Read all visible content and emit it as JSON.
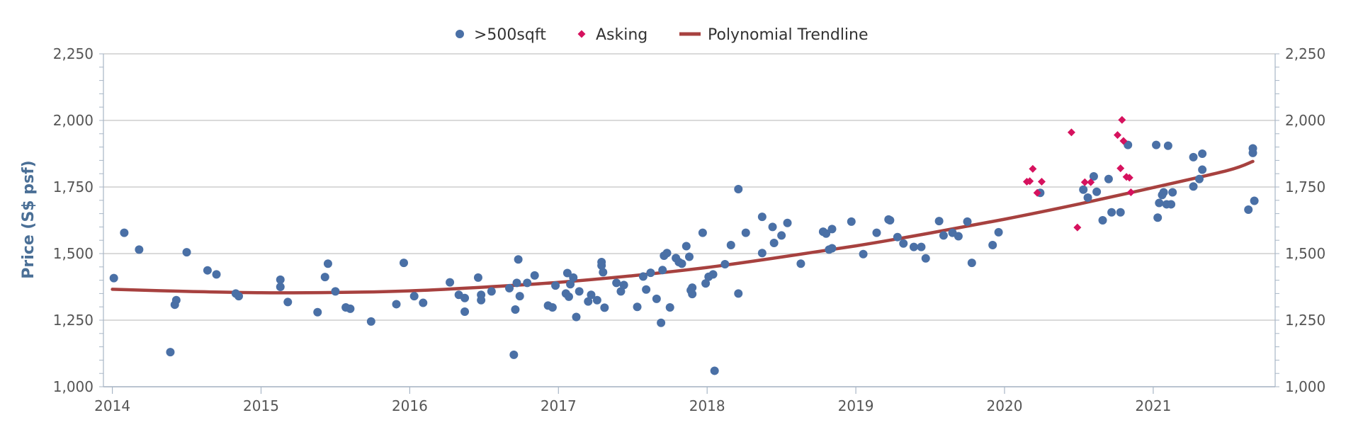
{
  "chart_data": {
    "type": "scatter",
    "ylabel": "Price (S$ psf)",
    "xlabel": "",
    "ylim": [
      1000,
      2250
    ],
    "xlim": [
      2013.94,
      2021.82
    ],
    "y_ticks": [
      1000,
      1250,
      1500,
      1750,
      2000,
      2250
    ],
    "y_tick_labels": [
      "1,000",
      "1,250",
      "1,500",
      "1,750",
      "2,000",
      "2,250"
    ],
    "x_ticks": [
      2014,
      2015,
      2016,
      2017,
      2018,
      2019,
      2020,
      2021
    ],
    "x_tick_labels": [
      "2014",
      "2015",
      "2016",
      "2017",
      "2018",
      "2019",
      "2020",
      "2021"
    ],
    "grid": true,
    "legend_position": "top-center",
    "series": [
      {
        "name": ">500sqft",
        "kind": "scatter",
        "marker": "circle",
        "color": "#4a70a6",
        "points": [
          [
            2014.01,
            1408
          ],
          [
            2014.08,
            1578
          ],
          [
            2014.18,
            1515
          ],
          [
            2014.39,
            1130
          ],
          [
            2014.42,
            1308
          ],
          [
            2014.43,
            1325
          ],
          [
            2014.5,
            1505
          ],
          [
            2014.64,
            1437
          ],
          [
            2014.7,
            1422
          ],
          [
            2014.83,
            1350
          ],
          [
            2014.85,
            1340
          ],
          [
            2015.13,
            1402
          ],
          [
            2015.13,
            1375
          ],
          [
            2015.18,
            1318
          ],
          [
            2015.38,
            1280
          ],
          [
            2015.43,
            1412
          ],
          [
            2015.45,
            1462
          ],
          [
            2015.5,
            1358
          ],
          [
            2015.57,
            1298
          ],
          [
            2015.6,
            1293
          ],
          [
            2015.74,
            1245
          ],
          [
            2015.91,
            1310
          ],
          [
            2015.96,
            1465
          ],
          [
            2016.03,
            1340
          ],
          [
            2016.09,
            1315
          ],
          [
            2016.27,
            1392
          ],
          [
            2016.33,
            1345
          ],
          [
            2016.37,
            1333
          ],
          [
            2016.37,
            1282
          ],
          [
            2016.46,
            1410
          ],
          [
            2016.48,
            1345
          ],
          [
            2016.48,
            1325
          ],
          [
            2016.55,
            1358
          ],
          [
            2016.67,
            1370
          ],
          [
            2016.7,
            1120
          ],
          [
            2016.71,
            1290
          ],
          [
            2016.72,
            1390
          ],
          [
            2016.73,
            1478
          ],
          [
            2016.74,
            1340
          ],
          [
            2016.79,
            1390
          ],
          [
            2016.84,
            1418
          ],
          [
            2016.93,
            1305
          ],
          [
            2016.96,
            1298
          ],
          [
            2016.98,
            1380
          ],
          [
            2017.05,
            1350
          ],
          [
            2017.06,
            1427
          ],
          [
            2017.07,
            1338
          ],
          [
            2017.08,
            1385
          ],
          [
            2017.1,
            1410
          ],
          [
            2017.12,
            1262
          ],
          [
            2017.14,
            1358
          ],
          [
            2017.2,
            1320
          ],
          [
            2017.22,
            1345
          ],
          [
            2017.26,
            1325
          ],
          [
            2017.29,
            1468
          ],
          [
            2017.29,
            1455
          ],
          [
            2017.3,
            1430
          ],
          [
            2017.31,
            1297
          ],
          [
            2017.39,
            1390
          ],
          [
            2017.42,
            1358
          ],
          [
            2017.44,
            1382
          ],
          [
            2017.53,
            1300
          ],
          [
            2017.57,
            1414
          ],
          [
            2017.59,
            1365
          ],
          [
            2017.62,
            1428
          ],
          [
            2017.66,
            1330
          ],
          [
            2017.69,
            1240
          ],
          [
            2017.7,
            1438
          ],
          [
            2017.71,
            1492
          ],
          [
            2017.73,
            1502
          ],
          [
            2017.75,
            1298
          ],
          [
            2017.79,
            1483
          ],
          [
            2017.81,
            1468
          ],
          [
            2017.83,
            1462
          ],
          [
            2017.86,
            1528
          ],
          [
            2017.88,
            1488
          ],
          [
            2017.89,
            1362
          ],
          [
            2017.9,
            1348
          ],
          [
            2017.9,
            1372
          ],
          [
            2017.97,
            1578
          ],
          [
            2017.99,
            1388
          ],
          [
            2018.01,
            1413
          ],
          [
            2018.04,
            1422
          ],
          [
            2018.05,
            1060
          ],
          [
            2018.12,
            1460
          ],
          [
            2018.16,
            1532
          ],
          [
            2018.21,
            1350
          ],
          [
            2018.21,
            1742
          ],
          [
            2018.26,
            1578
          ],
          [
            2018.37,
            1502
          ],
          [
            2018.37,
            1638
          ],
          [
            2018.44,
            1600
          ],
          [
            2018.45,
            1540
          ],
          [
            2018.5,
            1568
          ],
          [
            2018.54,
            1615
          ],
          [
            2018.63,
            1462
          ],
          [
            2018.78,
            1582
          ],
          [
            2018.8,
            1575
          ],
          [
            2018.82,
            1515
          ],
          [
            2018.84,
            1520
          ],
          [
            2018.84,
            1592
          ],
          [
            2018.97,
            1620
          ],
          [
            2019.05,
            1498
          ],
          [
            2019.14,
            1578
          ],
          [
            2019.22,
            1628
          ],
          [
            2019.23,
            1625
          ],
          [
            2019.28,
            1562
          ],
          [
            2019.32,
            1538
          ],
          [
            2019.39,
            1525
          ],
          [
            2019.44,
            1525
          ],
          [
            2019.47,
            1482
          ],
          [
            2019.56,
            1622
          ],
          [
            2019.59,
            1568
          ],
          [
            2019.65,
            1578
          ],
          [
            2019.69,
            1565
          ],
          [
            2019.75,
            1620
          ],
          [
            2019.78,
            1465
          ],
          [
            2019.92,
            1532
          ],
          [
            2019.96,
            1580
          ],
          [
            2020.24,
            1728
          ],
          [
            2020.53,
            1740
          ],
          [
            2020.56,
            1710
          ],
          [
            2020.6,
            1790
          ],
          [
            2020.62,
            1732
          ],
          [
            2020.66,
            1625
          ],
          [
            2020.7,
            1780
          ],
          [
            2020.72,
            1655
          ],
          [
            2020.78,
            1655
          ],
          [
            2020.83,
            1908
          ],
          [
            2021.02,
            1908
          ],
          [
            2021.03,
            1635
          ],
          [
            2021.04,
            1690
          ],
          [
            2021.06,
            1720
          ],
          [
            2021.07,
            1730
          ],
          [
            2021.09,
            1685
          ],
          [
            2021.1,
            1905
          ],
          [
            2021.12,
            1685
          ],
          [
            2021.13,
            1730
          ],
          [
            2021.27,
            1752
          ],
          [
            2021.27,
            1862
          ],
          [
            2021.31,
            1780
          ],
          [
            2021.33,
            1815
          ],
          [
            2021.33,
            1875
          ],
          [
            2021.64,
            1665
          ],
          [
            2021.67,
            1878
          ],
          [
            2021.67,
            1895
          ],
          [
            2021.68,
            1698
          ]
        ]
      },
      {
        "name": "Asking",
        "kind": "scatter",
        "marker": "diamond",
        "color": "#d6125e",
        "points": [
          [
            2020.15,
            1770
          ],
          [
            2020.17,
            1772
          ],
          [
            2020.19,
            1818
          ],
          [
            2020.22,
            1728
          ],
          [
            2020.25,
            1770
          ],
          [
            2020.45,
            1955
          ],
          [
            2020.49,
            1598
          ],
          [
            2020.54,
            1768
          ],
          [
            2020.58,
            1768
          ],
          [
            2020.76,
            1945
          ],
          [
            2020.78,
            1820
          ],
          [
            2020.79,
            2002
          ],
          [
            2020.8,
            1923
          ],
          [
            2020.82,
            1788
          ],
          [
            2020.84,
            1785
          ],
          [
            2020.85,
            1730
          ]
        ]
      },
      {
        "name": "Polynomial Trendline",
        "kind": "line",
        "color": "#a7413f",
        "points": [
          [
            2014.0,
            1366
          ],
          [
            2014.5,
            1358
          ],
          [
            2015.0,
            1353
          ],
          [
            2015.5,
            1354
          ],
          [
            2016.0,
            1360
          ],
          [
            2016.5,
            1374
          ],
          [
            2017.0,
            1392
          ],
          [
            2017.5,
            1417
          ],
          [
            2018.0,
            1448
          ],
          [
            2018.5,
            1487
          ],
          [
            2019.0,
            1529
          ],
          [
            2019.5,
            1577
          ],
          [
            2020.0,
            1629
          ],
          [
            2020.5,
            1686
          ],
          [
            2021.0,
            1748
          ],
          [
            2021.5,
            1812
          ],
          [
            2021.67,
            1846
          ]
        ]
      }
    ]
  },
  "colors": {
    "axis_title": "#4a6f96",
    "grid": "#c4c4c4",
    "axis_line": "#a8b6c6",
    "tick_text": "#555555",
    "legend_text": "#333333"
  }
}
